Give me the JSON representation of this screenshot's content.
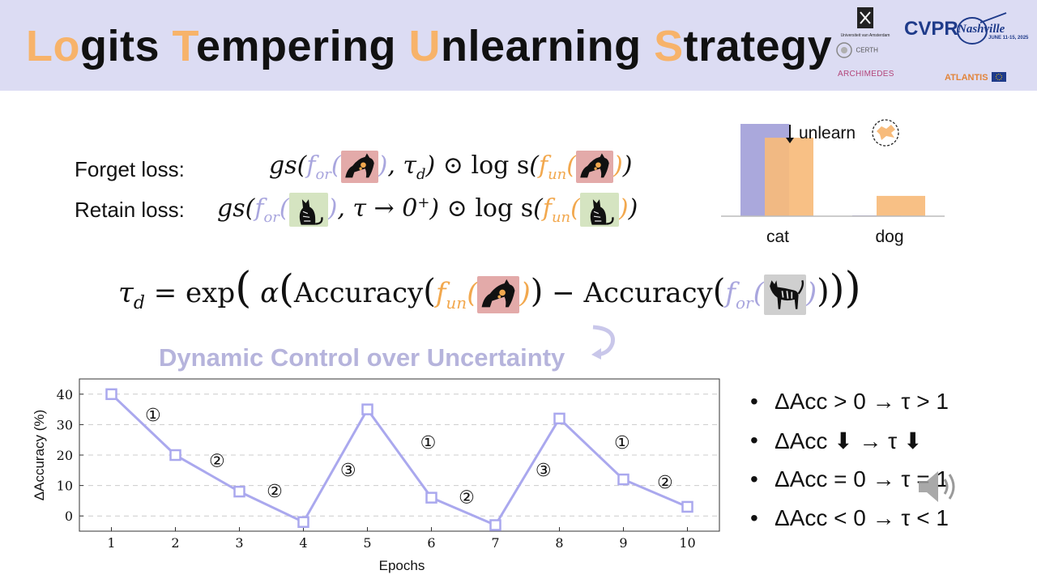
{
  "title": {
    "parts": [
      {
        "text": "Lo",
        "accent": true
      },
      {
        "text": "gits ",
        "accent": false
      },
      {
        "text": "T",
        "accent": true
      },
      {
        "text": "empering ",
        "accent": false
      },
      {
        "text": "U",
        "accent": true
      },
      {
        "text": "nlearning ",
        "accent": false
      },
      {
        "text": "S",
        "accent": true
      },
      {
        "text": "trategy",
        "accent": false
      }
    ]
  },
  "logos": {
    "uva": "Universiteit van Amsterdam",
    "certh": "CERTH",
    "archimedes": "ARCHIMEDES",
    "cvpr": "CVPR",
    "cvpr_city": "Nashville",
    "cvpr_dates": "JUNE 11-15, 2025",
    "atlantis": "ATLANTIS"
  },
  "losses": {
    "forget_label": "Forget loss:",
    "retain_label": "Retain loss:"
  },
  "math": {
    "gs": "gs",
    "f_or": "f",
    "f_or_sub": "or",
    "f_un": "f",
    "f_un_sub": "un",
    "tau_d": "τ",
    "tau_d_sub": "d",
    "tau_limit": "τ → 0",
    "tau_limit_sup": "+",
    "odot_log_s": "⊙ log s",
    "exp": "exp",
    "alpha": "α",
    "accuracy": "Accuracy",
    "minus": "−",
    "equals": "="
  },
  "mini_chart": {
    "categories": [
      "cat",
      "dog"
    ],
    "annotation": "unlearn",
    "series": [
      {
        "color": "#aaa8dc",
        "values": [
          1.0,
          0.0
        ]
      },
      {
        "color": "#f7bb7b",
        "values": [
          0.85,
          0.22
        ]
      }
    ]
  },
  "subtitle": "Dynamic Control over Uncertainty",
  "chart_data": {
    "type": "line",
    "x": [
      1,
      2,
      3,
      4,
      5,
      6,
      7,
      8,
      9,
      10
    ],
    "values": [
      40,
      20,
      8,
      -2,
      35,
      6,
      -3,
      32,
      12,
      3
    ],
    "xlabel": "Epochs",
    "ylabel": "ΔAccuracy (%)",
    "xlim": [
      0.5,
      10.5
    ],
    "ylim": [
      -5,
      45
    ],
    "yticks": [
      0,
      10,
      20,
      30,
      40
    ],
    "grid": "horizontal dashed",
    "line_color": "#aaa8ee",
    "annotations": [
      {
        "label": "①",
        "x": 1.65,
        "y": 33
      },
      {
        "label": "②",
        "x": 2.65,
        "y": 18
      },
      {
        "label": "②",
        "x": 3.55,
        "y": 8
      },
      {
        "label": "③",
        "x": 4.7,
        "y": 15
      },
      {
        "label": "①",
        "x": 5.95,
        "y": 24
      },
      {
        "label": "②",
        "x": 6.55,
        "y": 6
      },
      {
        "label": "③",
        "x": 7.75,
        "y": 15
      },
      {
        "label": "①",
        "x": 8.98,
        "y": 24
      },
      {
        "label": "②",
        "x": 9.65,
        "y": 11
      }
    ]
  },
  "bullets": [
    {
      "text": "ΔAcc > 0 → τ > 1"
    },
    {
      "text": "ΔAcc ⬇ → τ ⬇"
    },
    {
      "text": "ΔAcc = 0 → τ = 1"
    },
    {
      "text": "ΔAcc < 0 → τ < 1"
    }
  ]
}
